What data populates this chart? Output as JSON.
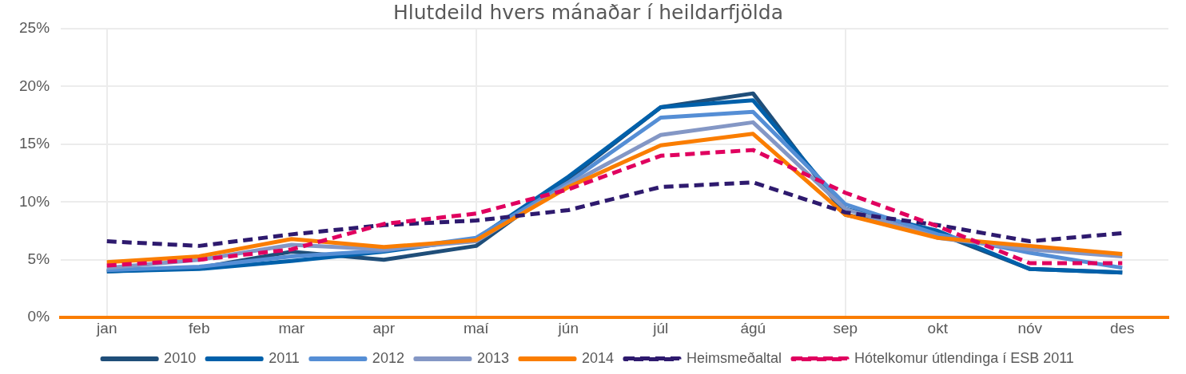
{
  "chart_data": {
    "type": "line",
    "title": "Hlutdeild hvers mánaðar í heildarfjölda",
    "categories": [
      "jan",
      "feb",
      "mar",
      "apr",
      "maí",
      "jún",
      "júl",
      "ágú",
      "sep",
      "okt",
      "nóv",
      "des"
    ],
    "series": [
      {
        "name": "2010",
        "color": "#1f4e79",
        "values": [
          4.0,
          4.3,
          5.7,
          5.0,
          6.2,
          12.0,
          18.2,
          19.4,
          8.9,
          7.3,
          4.2,
          3.9
        ]
      },
      {
        "name": "2011",
        "color": "#0060aa",
        "values": [
          4.0,
          4.2,
          4.9,
          5.7,
          6.8,
          12.2,
          18.2,
          18.8,
          9.4,
          7.5,
          4.2,
          3.9
        ]
      },
      {
        "name": "2012",
        "color": "#558ed5",
        "values": [
          4.1,
          4.4,
          5.3,
          5.8,
          6.9,
          11.7,
          17.3,
          17.8,
          9.8,
          7.2,
          5.6,
          4.3
        ]
      },
      {
        "name": "2013",
        "color": "#8497c5",
        "values": [
          4.3,
          5.0,
          6.3,
          5.9,
          6.6,
          11.5,
          15.8,
          16.9,
          9.4,
          6.9,
          5.9,
          5.3
        ]
      },
      {
        "name": "2014",
        "color": "#fa7d00",
        "values": [
          4.8,
          5.3,
          6.8,
          6.1,
          6.7,
          11.3,
          14.9,
          15.9,
          8.9,
          6.9,
          6.2,
          5.5
        ]
      },
      {
        "name": "Heimsmeðaltal",
        "color": "#2e1a6e",
        "line_style": "dashed",
        "values": [
          6.6,
          6.2,
          7.2,
          8.0,
          8.4,
          9.3,
          11.3,
          11.7,
          9.1,
          8.0,
          6.6,
          7.3
        ]
      },
      {
        "name": "Hótelkomur útlendinga í ESB 2011",
        "color": "#e0005f",
        "line_style": "dashed",
        "values": [
          4.5,
          5.0,
          5.9,
          8.1,
          9.0,
          11.1,
          14.0,
          14.5,
          10.8,
          7.9,
          4.7,
          4.7
        ]
      }
    ],
    "ylim": [
      0,
      25
    ],
    "yticks": [
      {
        "value": 0,
        "label": "0%"
      },
      {
        "value": 5,
        "label": "5%"
      },
      {
        "value": 10,
        "label": "10%"
      },
      {
        "value": 15,
        "label": "15%"
      },
      {
        "value": 20,
        "label": "20%"
      },
      {
        "value": 25,
        "label": "25%"
      }
    ],
    "grid": true,
    "legend": "bottom",
    "marker": "none",
    "line_style": "solid"
  }
}
